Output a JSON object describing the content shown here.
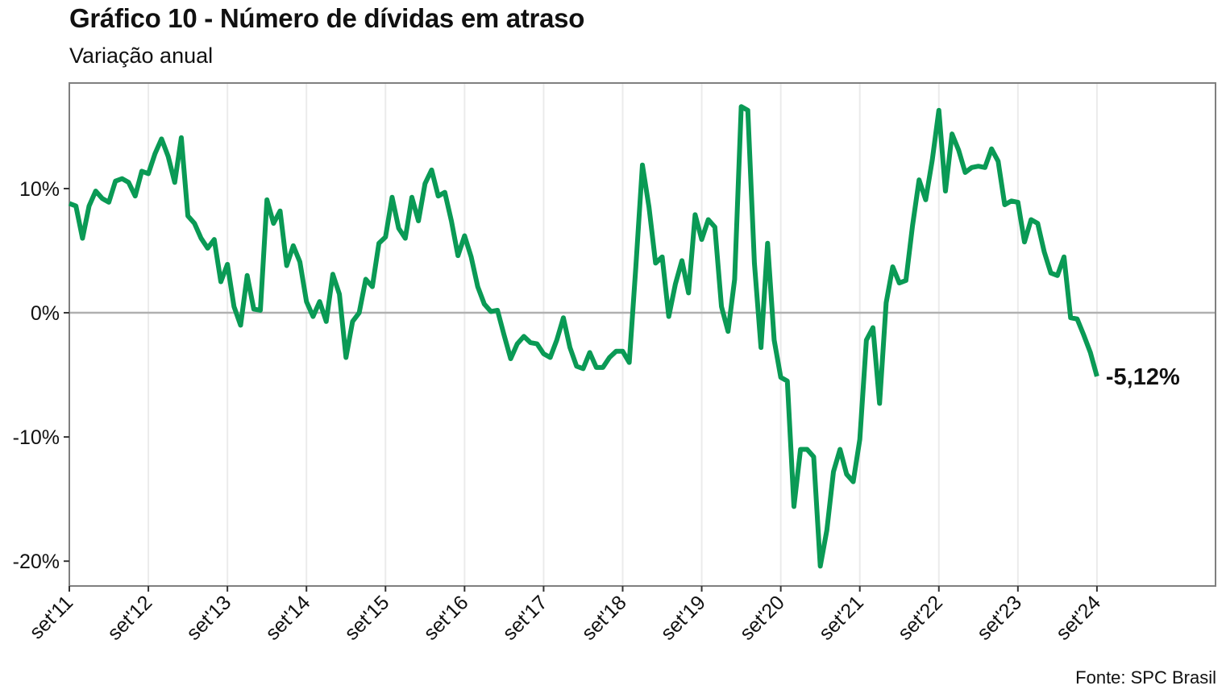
{
  "title": "Gráfico 10 - Número de dívidas em atraso",
  "subtitle": "Variação anual",
  "caption": "Fonte: SPC Brasil",
  "colors": {
    "line": "#0a9a55",
    "grid": "#ebebeb",
    "zero": "#b0b0b0",
    "border": "#7f7f7f"
  },
  "chart_data": {
    "type": "line",
    "title": "Gráfico 10 - Número de dívidas em atraso",
    "subtitle": "Variação anual",
    "xlabel": "",
    "ylabel": "",
    "x_ticks": [
      "set'11",
      "set'12",
      "set'13",
      "set'14",
      "set'15",
      "set'16",
      "set'17",
      "set'18",
      "set'19",
      "set'20",
      "set'21",
      "set'22",
      "set'23",
      "set'24"
    ],
    "y_ticks": [
      {
        "value": 10,
        "label": "10%"
      },
      {
        "value": 0,
        "label": "0%"
      },
      {
        "value": -10,
        "label": "-10%"
      },
      {
        "value": -20,
        "label": "-20%"
      }
    ],
    "xlim": [
      "2011-09",
      "2026-03"
    ],
    "ylim": [
      -22,
      18.5
    ],
    "grid": true,
    "legend": "none",
    "end_label": "-5,12%",
    "series": [
      {
        "points": [
          [
            "2011-09",
            8.8
          ],
          [
            "2011-10",
            8.6
          ],
          [
            "2011-11",
            6.0
          ],
          [
            "2011-12",
            8.6
          ],
          [
            "2012-01",
            9.8
          ],
          [
            "2012-02",
            9.2
          ],
          [
            "2012-03",
            8.9
          ],
          [
            "2012-04",
            10.6
          ],
          [
            "2012-05",
            10.8
          ],
          [
            "2012-06",
            10.5
          ],
          [
            "2012-07",
            9.4
          ],
          [
            "2012-08",
            11.4
          ],
          [
            "2012-09",
            11.2
          ],
          [
            "2012-10",
            12.8
          ],
          [
            "2012-11",
            14.0
          ],
          [
            "2012-12",
            12.6
          ],
          [
            "2013-01",
            10.5
          ],
          [
            "2013-02",
            14.1
          ],
          [
            "2013-03",
            7.8
          ],
          [
            "2013-04",
            7.2
          ],
          [
            "2013-05",
            6.0
          ],
          [
            "2013-06",
            5.2
          ],
          [
            "2013-07",
            5.9
          ],
          [
            "2013-08",
            2.5
          ],
          [
            "2013-09",
            3.9
          ],
          [
            "2013-10",
            0.5
          ],
          [
            "2013-11",
            -1.0
          ],
          [
            "2013-12",
            3.0
          ],
          [
            "2014-01",
            0.3
          ],
          [
            "2014-02",
            0.2
          ],
          [
            "2014-03",
            9.1
          ],
          [
            "2014-04",
            7.2
          ],
          [
            "2014-05",
            8.2
          ],
          [
            "2014-06",
            3.8
          ],
          [
            "2014-07",
            5.4
          ],
          [
            "2014-08",
            4.1
          ],
          [
            "2014-09",
            0.9
          ],
          [
            "2014-10",
            -0.3
          ],
          [
            "2014-11",
            0.9
          ],
          [
            "2014-12",
            -0.7
          ],
          [
            "2015-01",
            3.1
          ],
          [
            "2015-02",
            1.5
          ],
          [
            "2015-03",
            -3.6
          ],
          [
            "2015-04",
            -0.7
          ],
          [
            "2015-05",
            0.0
          ],
          [
            "2015-06",
            2.7
          ],
          [
            "2015-07",
            2.1
          ],
          [
            "2015-08",
            5.6
          ],
          [
            "2015-09",
            6.1
          ],
          [
            "2015-10",
            9.3
          ],
          [
            "2015-11",
            6.8
          ],
          [
            "2015-12",
            6.0
          ],
          [
            "2016-01",
            9.3
          ],
          [
            "2016-02",
            7.4
          ],
          [
            "2016-03",
            10.4
          ],
          [
            "2016-04",
            11.5
          ],
          [
            "2016-05",
            9.4
          ],
          [
            "2016-06",
            9.7
          ],
          [
            "2016-07",
            7.4
          ],
          [
            "2016-08",
            4.6
          ],
          [
            "2016-09",
            6.2
          ],
          [
            "2016-10",
            4.5
          ],
          [
            "2016-11",
            2.1
          ],
          [
            "2016-12",
            0.7
          ],
          [
            "2017-01",
            0.1
          ],
          [
            "2017-02",
            0.2
          ],
          [
            "2017-03",
            -1.8
          ],
          [
            "2017-04",
            -3.7
          ],
          [
            "2017-05",
            -2.5
          ],
          [
            "2017-06",
            -1.9
          ],
          [
            "2017-07",
            -2.4
          ],
          [
            "2017-08",
            -2.5
          ],
          [
            "2017-09",
            -3.3
          ],
          [
            "2017-10",
            -3.6
          ],
          [
            "2017-11",
            -2.2
          ],
          [
            "2017-12",
            -0.4
          ],
          [
            "2018-01",
            -2.8
          ],
          [
            "2018-02",
            -4.3
          ],
          [
            "2018-03",
            -4.5
          ],
          [
            "2018-04",
            -3.2
          ],
          [
            "2018-05",
            -4.4
          ],
          [
            "2018-06",
            -4.4
          ],
          [
            "2018-07",
            -3.6
          ],
          [
            "2018-08",
            -3.1
          ],
          [
            "2018-09",
            -3.1
          ],
          [
            "2018-10",
            -4.0
          ],
          [
            "2018-11",
            3.7
          ],
          [
            "2018-12",
            11.9
          ],
          [
            "2019-01",
            8.5
          ],
          [
            "2019-02",
            4.0
          ],
          [
            "2019-03",
            4.5
          ],
          [
            "2019-04",
            -0.3
          ],
          [
            "2019-05",
            2.3
          ],
          [
            "2019-06",
            4.2
          ],
          [
            "2019-07",
            1.6
          ],
          [
            "2019-08",
            7.9
          ],
          [
            "2019-09",
            5.9
          ],
          [
            "2019-10",
            7.5
          ],
          [
            "2019-11",
            6.9
          ],
          [
            "2019-12",
            0.5
          ],
          [
            "2020-01",
            -1.5
          ],
          [
            "2020-02",
            2.7
          ],
          [
            "2020-03",
            16.6
          ],
          [
            "2020-04",
            16.3
          ],
          [
            "2020-05",
            4.0
          ],
          [
            "2020-06",
            -2.8
          ],
          [
            "2020-07",
            5.6
          ],
          [
            "2020-08",
            -2.2
          ],
          [
            "2020-09",
            -5.2
          ],
          [
            "2020-10",
            -5.5
          ],
          [
            "2020-11",
            -15.6
          ],
          [
            "2020-12",
            -11.0
          ],
          [
            "2021-01",
            -11.0
          ],
          [
            "2021-02",
            -11.6
          ],
          [
            "2021-03",
            -20.4
          ],
          [
            "2021-04",
            -17.5
          ],
          [
            "2021-05",
            -12.8
          ],
          [
            "2021-06",
            -11.0
          ],
          [
            "2021-07",
            -13.0
          ],
          [
            "2021-08",
            -13.6
          ],
          [
            "2021-09",
            -10.2
          ],
          [
            "2021-10",
            -2.2
          ],
          [
            "2021-11",
            -1.2
          ],
          [
            "2021-12",
            -7.3
          ],
          [
            "2022-01",
            0.8
          ],
          [
            "2022-02",
            3.7
          ],
          [
            "2022-03",
            2.4
          ],
          [
            "2022-04",
            2.6
          ],
          [
            "2022-05",
            7.0
          ],
          [
            "2022-06",
            10.7
          ],
          [
            "2022-07",
            9.1
          ],
          [
            "2022-08",
            12.3
          ],
          [
            "2022-09",
            16.3
          ],
          [
            "2022-10",
            9.8
          ],
          [
            "2022-11",
            14.4
          ],
          [
            "2022-12",
            13.1
          ],
          [
            "2023-01",
            11.3
          ],
          [
            "2023-02",
            11.7
          ],
          [
            "2023-03",
            11.8
          ],
          [
            "2023-04",
            11.7
          ],
          [
            "2023-05",
            13.2
          ],
          [
            "2023-06",
            12.2
          ],
          [
            "2023-07",
            8.7
          ],
          [
            "2023-08",
            9.0
          ],
          [
            "2023-09",
            8.9
          ],
          [
            "2023-10",
            5.7
          ],
          [
            "2023-11",
            7.5
          ],
          [
            "2023-12",
            7.2
          ],
          [
            "2024-01",
            4.9
          ],
          [
            "2024-02",
            3.2
          ],
          [
            "2024-03",
            3.0
          ],
          [
            "2024-04",
            4.5
          ],
          [
            "2024-05",
            -0.4
          ],
          [
            "2024-06",
            -0.5
          ],
          [
            "2024-07",
            -1.8
          ],
          [
            "2024-08",
            -3.2
          ],
          [
            "2024-09",
            -5.12
          ]
        ]
      }
    ]
  }
}
